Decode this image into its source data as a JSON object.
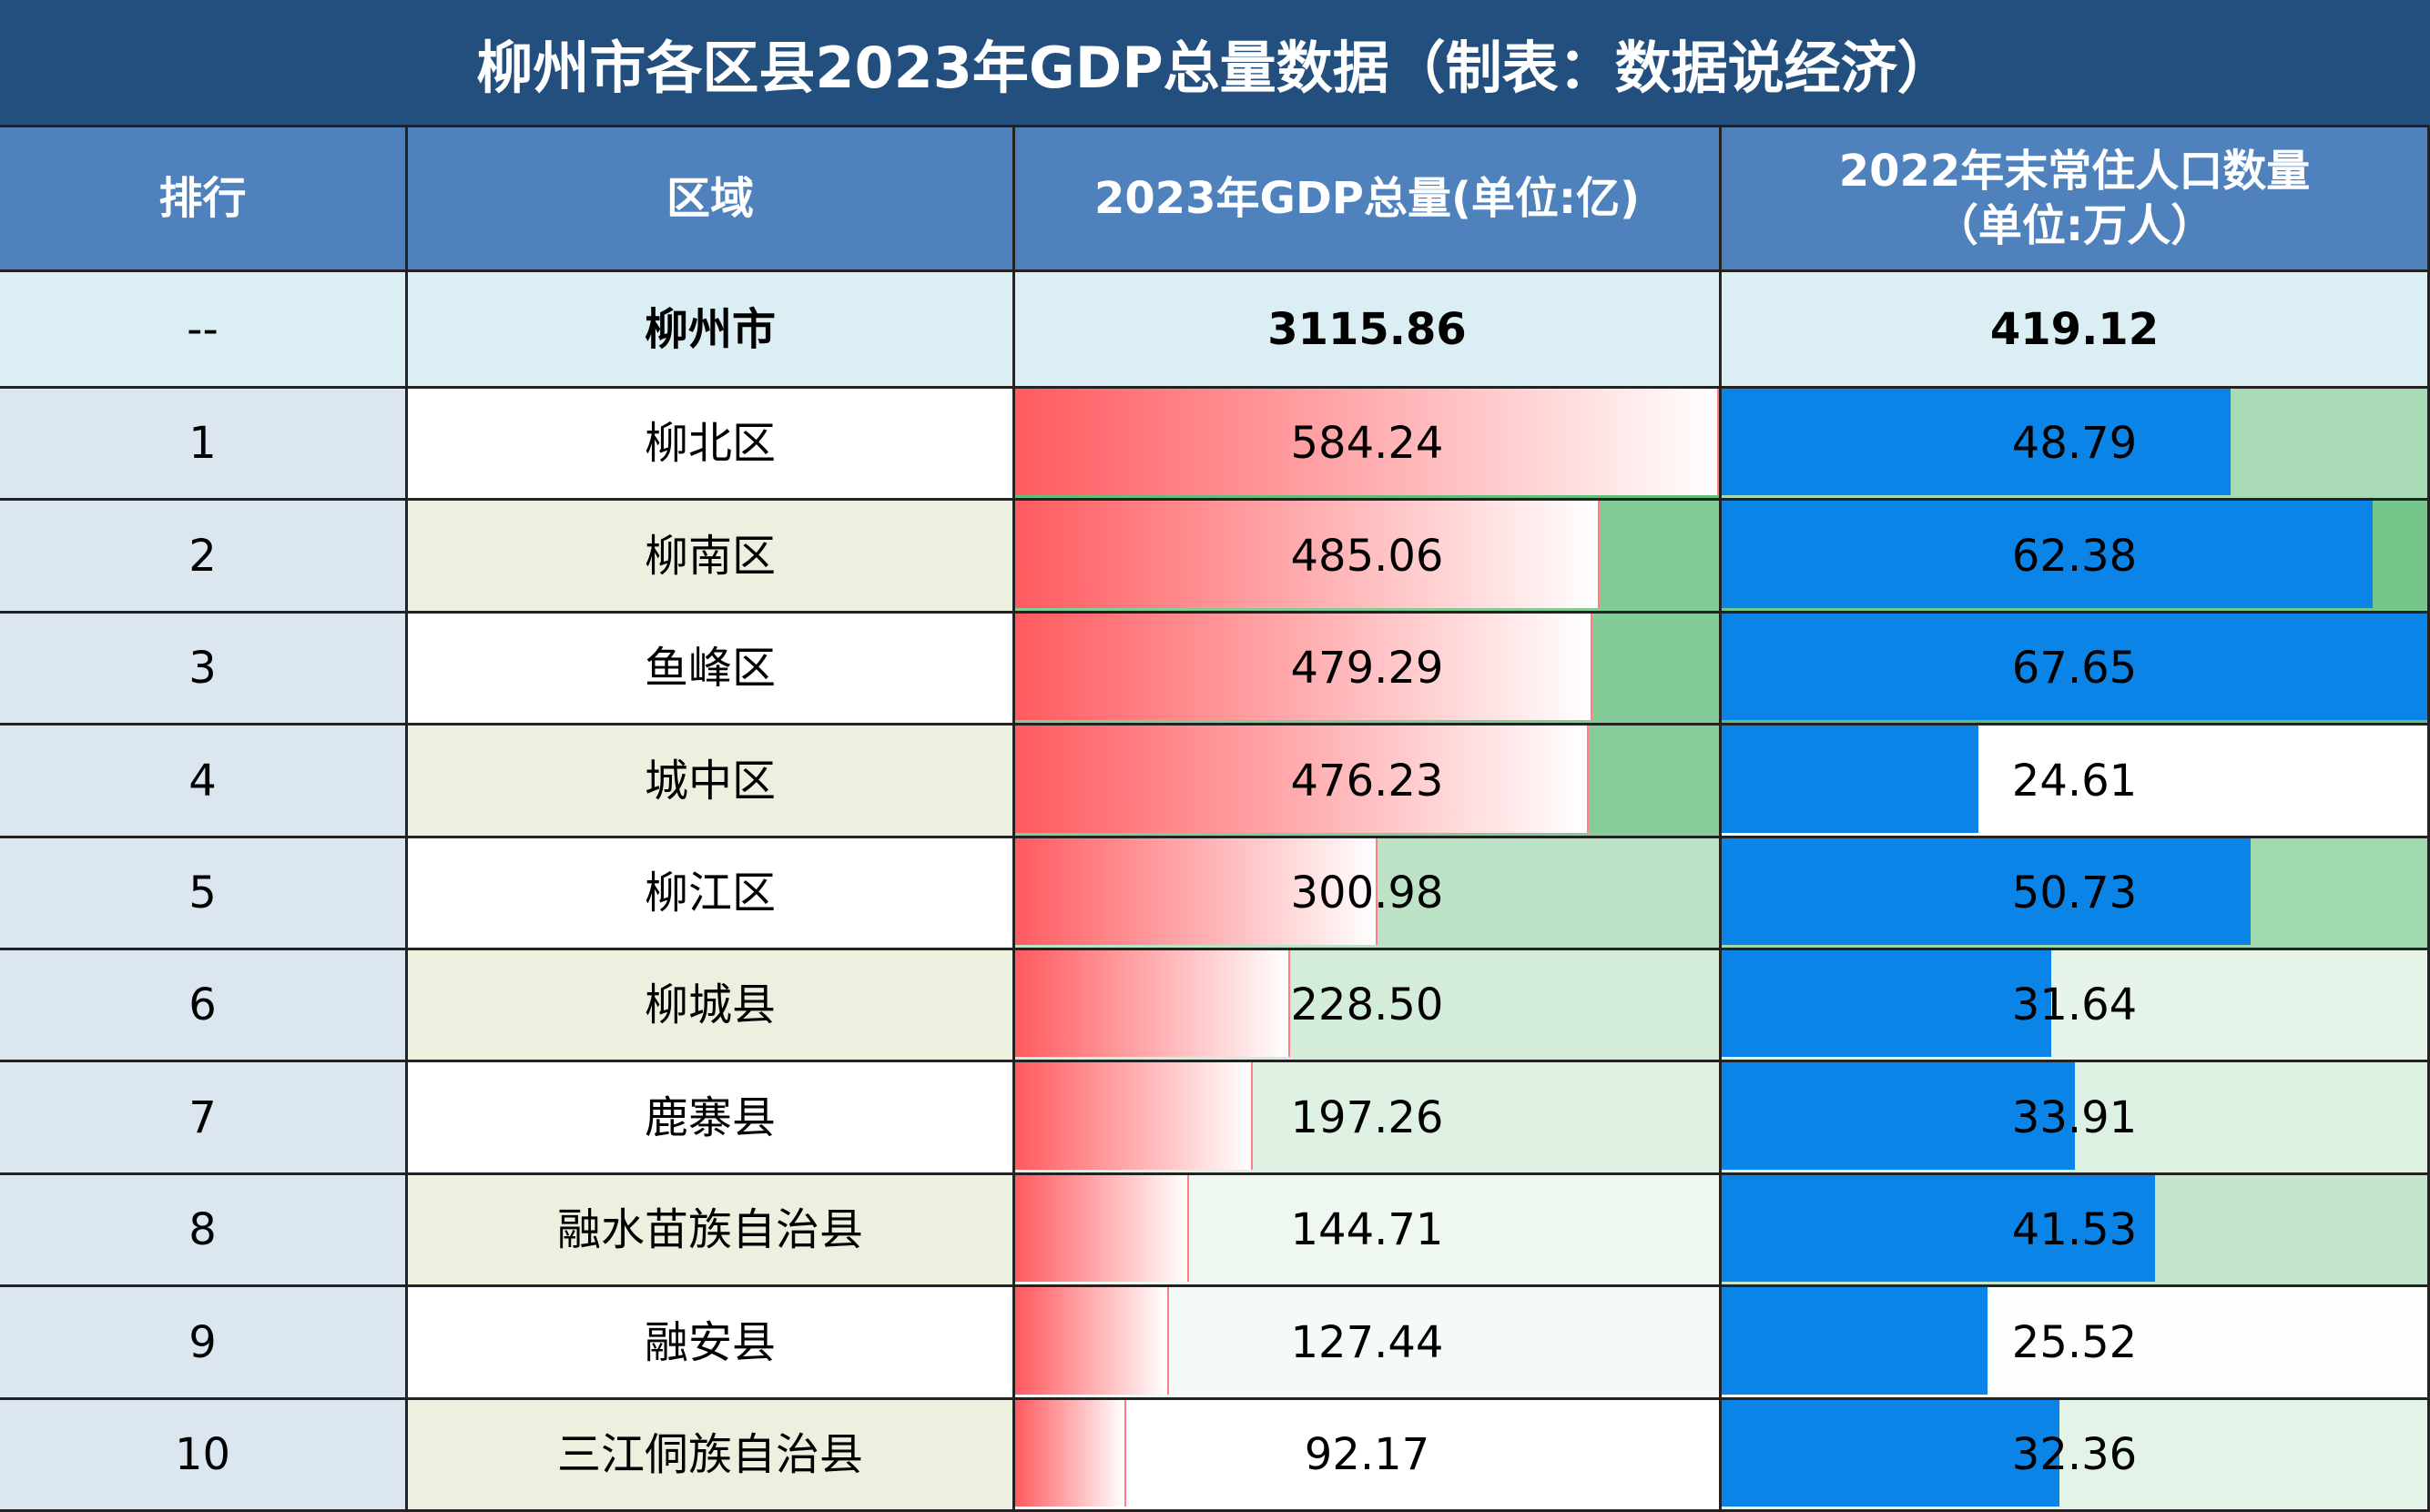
{
  "title": "柳州市各区县2023年GDP总量数据（制表：数据说经济）",
  "table": {
    "header": [
      "排行",
      "区域",
      "2023年GDP总量(单位:亿)",
      "2022年末常住人口数量\n（单位:万人）"
    ],
    "total": [
      "--",
      "柳州市",
      "3115.86",
      "419.12"
    ],
    "rows": [
      [
        "1",
        "柳北区",
        "584.24",
        "48.79"
      ],
      [
        "2",
        "柳南区",
        "485.06",
        "62.38"
      ],
      [
        "3",
        "鱼峰区",
        "479.29",
        "67.65"
      ],
      [
        "4",
        "城中区",
        "476.23",
        "24.61"
      ],
      [
        "5",
        "柳江区",
        "300.98",
        "50.73"
      ],
      [
        "6",
        "柳城县",
        "228.50",
        "31.64"
      ],
      [
        "7",
        "鹿寨县",
        "197.26",
        "33.91"
      ],
      [
        "8",
        "融水苗族自治县",
        "144.71",
        "41.53"
      ],
      [
        "9",
        "融安县",
        "127.44",
        "25.52"
      ],
      [
        "10",
        "三江侗族自治县",
        "92.17",
        "32.36"
      ]
    ]
  }
}
